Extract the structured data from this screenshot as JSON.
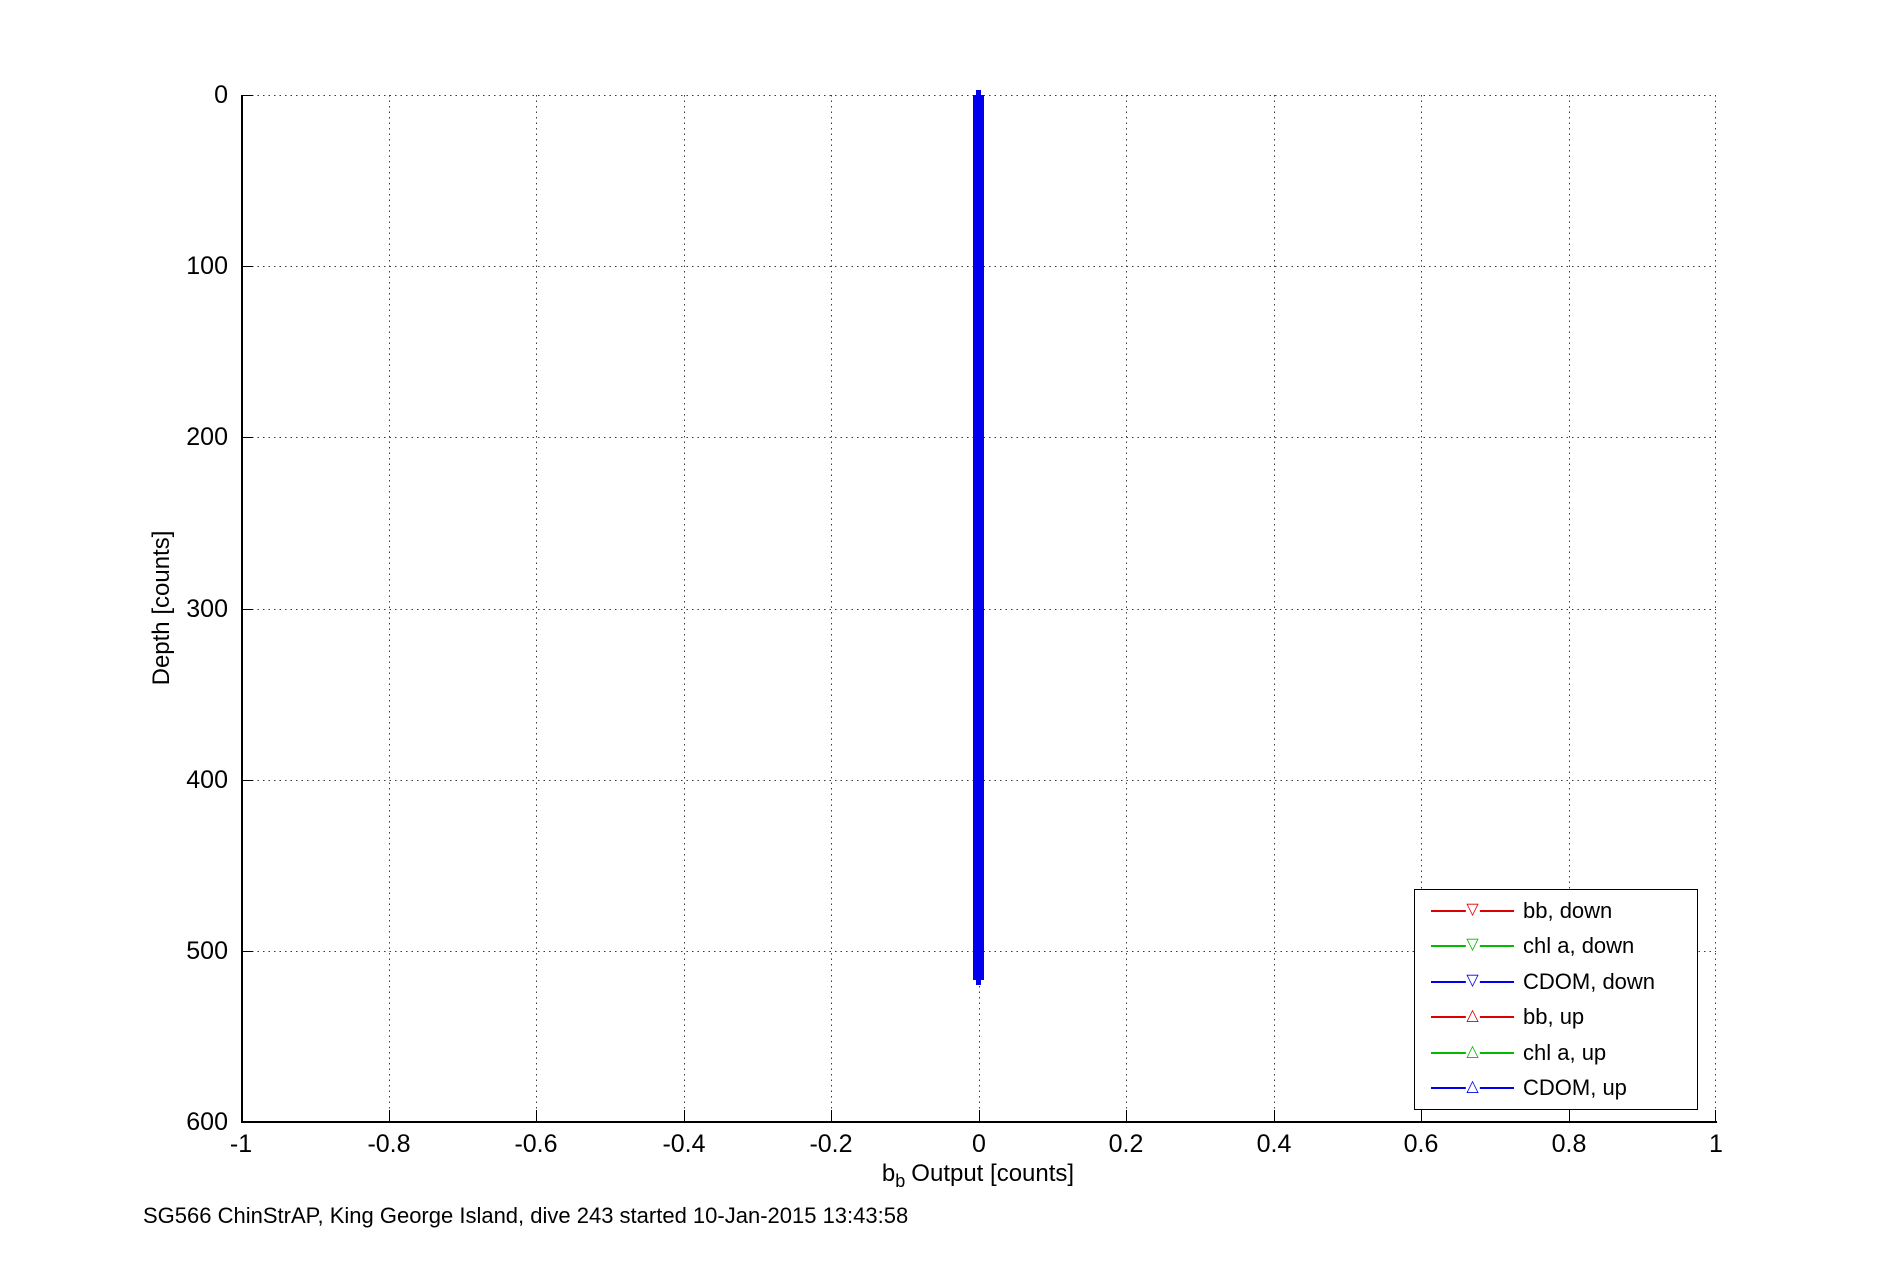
{
  "figure": {
    "caption": "SG566 ChinStrAP, King George Island, dive 243 started 10-Jan-2015 13:43:58",
    "background_color": "#ffffff"
  },
  "chart_data": {
    "type": "line",
    "title": "",
    "xlabel": "b_b Output [counts]",
    "xlabel_parts": {
      "base": "b",
      "sub": "b",
      "rest": "Output [counts]"
    },
    "ylabel": "Depth [counts]",
    "xlim": [
      -1,
      1
    ],
    "ylim": [
      0,
      600
    ],
    "y_axis_reversed": true,
    "grid": true,
    "grid_style": "dotted",
    "box": "off",
    "x_ticks": [
      -1,
      -0.8,
      -0.6,
      -0.4,
      -0.2,
      0,
      0.2,
      0.4,
      0.6,
      0.8,
      1
    ],
    "x_tick_labels": [
      "-1",
      "-0.8",
      "-0.6",
      "-0.4",
      "-0.2",
      "0",
      "0.2",
      "0.4",
      "0.6",
      "0.8",
      "1"
    ],
    "y_ticks": [
      0,
      100,
      200,
      300,
      400,
      500,
      600
    ],
    "y_tick_labels": [
      "0",
      "100",
      "200",
      "300",
      "400",
      "500",
      "600"
    ],
    "legend_position": "lower-right",
    "series": [
      {
        "name": "bb, down",
        "color": "#dd0000",
        "marker": "triangle-down",
        "x_value": 0,
        "depth_range": [
          0,
          517
        ]
      },
      {
        "name": "chl a, down",
        "color": "#00bb00",
        "marker": "triangle-down",
        "x_value": 0,
        "depth_range": [
          0,
          517
        ]
      },
      {
        "name": "CDOM, down",
        "color": "#0000ee",
        "marker": "triangle-down",
        "x_value": 0,
        "depth_range": [
          0,
          517
        ]
      },
      {
        "name": "bb, up",
        "color": "#dd0000",
        "marker": "triangle-up",
        "x_value": 0,
        "depth_range": [
          0,
          517
        ]
      },
      {
        "name": "chl a, up",
        "color": "#00bb00",
        "marker": "triangle-up",
        "x_value": 0,
        "depth_range": [
          0,
          517
        ]
      },
      {
        "name": "CDOM, up",
        "color": "#0000ee",
        "marker": "triangle-up",
        "x_value": 0,
        "depth_range": [
          0,
          517
        ]
      }
    ],
    "visible_overplot_color": "#0000ee"
  }
}
